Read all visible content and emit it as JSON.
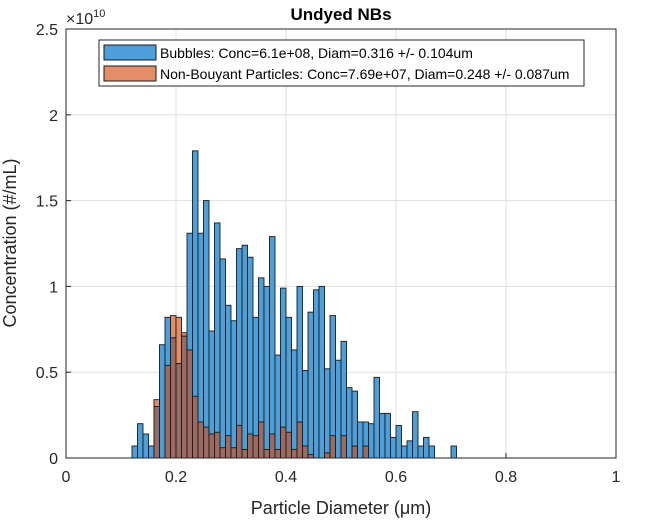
{
  "chart_data": {
    "type": "bar",
    "title": "Undyed NBs",
    "xlabel": "Particle Diameter (μm)",
    "ylabel": "Concentration (#/mL)",
    "y_exponent_label": "×10",
    "y_exponent": "10",
    "xlim": [
      0,
      1
    ],
    "ylim": [
      0,
      2.5
    ],
    "y_scale": 10000000000.0,
    "xticks": [
      "0",
      "0.2",
      "0.4",
      "0.6",
      "0.8",
      "1"
    ],
    "yticks": [
      "0",
      "0.5",
      "1",
      "1.5",
      "2",
      "2.5"
    ],
    "grid": true,
    "legend_position": "top",
    "bin_width": 0.01,
    "bin_starts": [
      0.12,
      0.13,
      0.14,
      0.15,
      0.16,
      0.17,
      0.18,
      0.19,
      0.2,
      0.21,
      0.22,
      0.23,
      0.24,
      0.25,
      0.26,
      0.27,
      0.28,
      0.29,
      0.3,
      0.31,
      0.32,
      0.33,
      0.34,
      0.35,
      0.36,
      0.37,
      0.38,
      0.39,
      0.4,
      0.41,
      0.42,
      0.43,
      0.44,
      0.45,
      0.46,
      0.47,
      0.48,
      0.49,
      0.5,
      0.51,
      0.52,
      0.53,
      0.54,
      0.55,
      0.56,
      0.57,
      0.58,
      0.59,
      0.6,
      0.61,
      0.62,
      0.63,
      0.64,
      0.65,
      0.66,
      0.67,
      0.68,
      0.69,
      0.7
    ],
    "series": [
      {
        "name": "Bubbles: Conc=6.1e+08, Diam=0.316 +/- 0.104um",
        "color": "#4d9fd9",
        "values": [
          0.07,
          0.2,
          0.14,
          0.07,
          0.3,
          0.66,
          0.82,
          0.7,
          0.55,
          0.71,
          1.31,
          1.79,
          1.31,
          1.5,
          0.74,
          1.37,
          1.16,
          0.89,
          0.8,
          1.22,
          1.24,
          1.17,
          0.82,
          1.05,
          1.0,
          1.29,
          0.6,
          0.99,
          0.82,
          0.63,
          1.0,
          0.51,
          0.85,
          0.98,
          1.0,
          0.52,
          0.83,
          0.57,
          0.68,
          0.41,
          0.39,
          0.21,
          0.21,
          0.2,
          0.47,
          0.26,
          0.26,
          0.12,
          0.19,
          0.07,
          0.1,
          0.27,
          0.07,
          0.12,
          0.07,
          0.0,
          0.0,
          0.0,
          0.07
        ]
      },
      {
        "name": "Non-Bouyant Particles: Conc=7.69e+07, Diam=0.248 +/- 0.087um",
        "color": "#e48d66",
        "values": [
          0,
          0,
          0,
          0,
          0.34,
          0.0,
          0.54,
          0.83,
          0.82,
          0.73,
          0.63,
          0.36,
          0.21,
          0.18,
          0.14,
          0.15,
          0.06,
          0.13,
          0.06,
          0.19,
          0.05,
          0.14,
          0.13,
          0.21,
          0.05,
          0.14,
          0.05,
          0.18,
          0.15,
          0.05,
          0.21,
          0.07,
          0.02,
          0.0,
          0.0,
          0.03,
          0.13,
          0.0,
          0.13,
          0.0,
          0.07,
          0.0,
          0.07,
          0.0,
          0.0,
          0.0,
          0.0,
          0.0,
          0.0,
          0.0,
          0.0,
          0.0,
          0.0,
          0.0,
          0.0,
          0.0,
          0.0,
          0.0,
          0.0
        ]
      }
    ]
  },
  "colors": {
    "axis": "#262626",
    "grid": "#dfdfdf",
    "overlap": "#9b6a60",
    "edge": "#1a1a1a"
  }
}
